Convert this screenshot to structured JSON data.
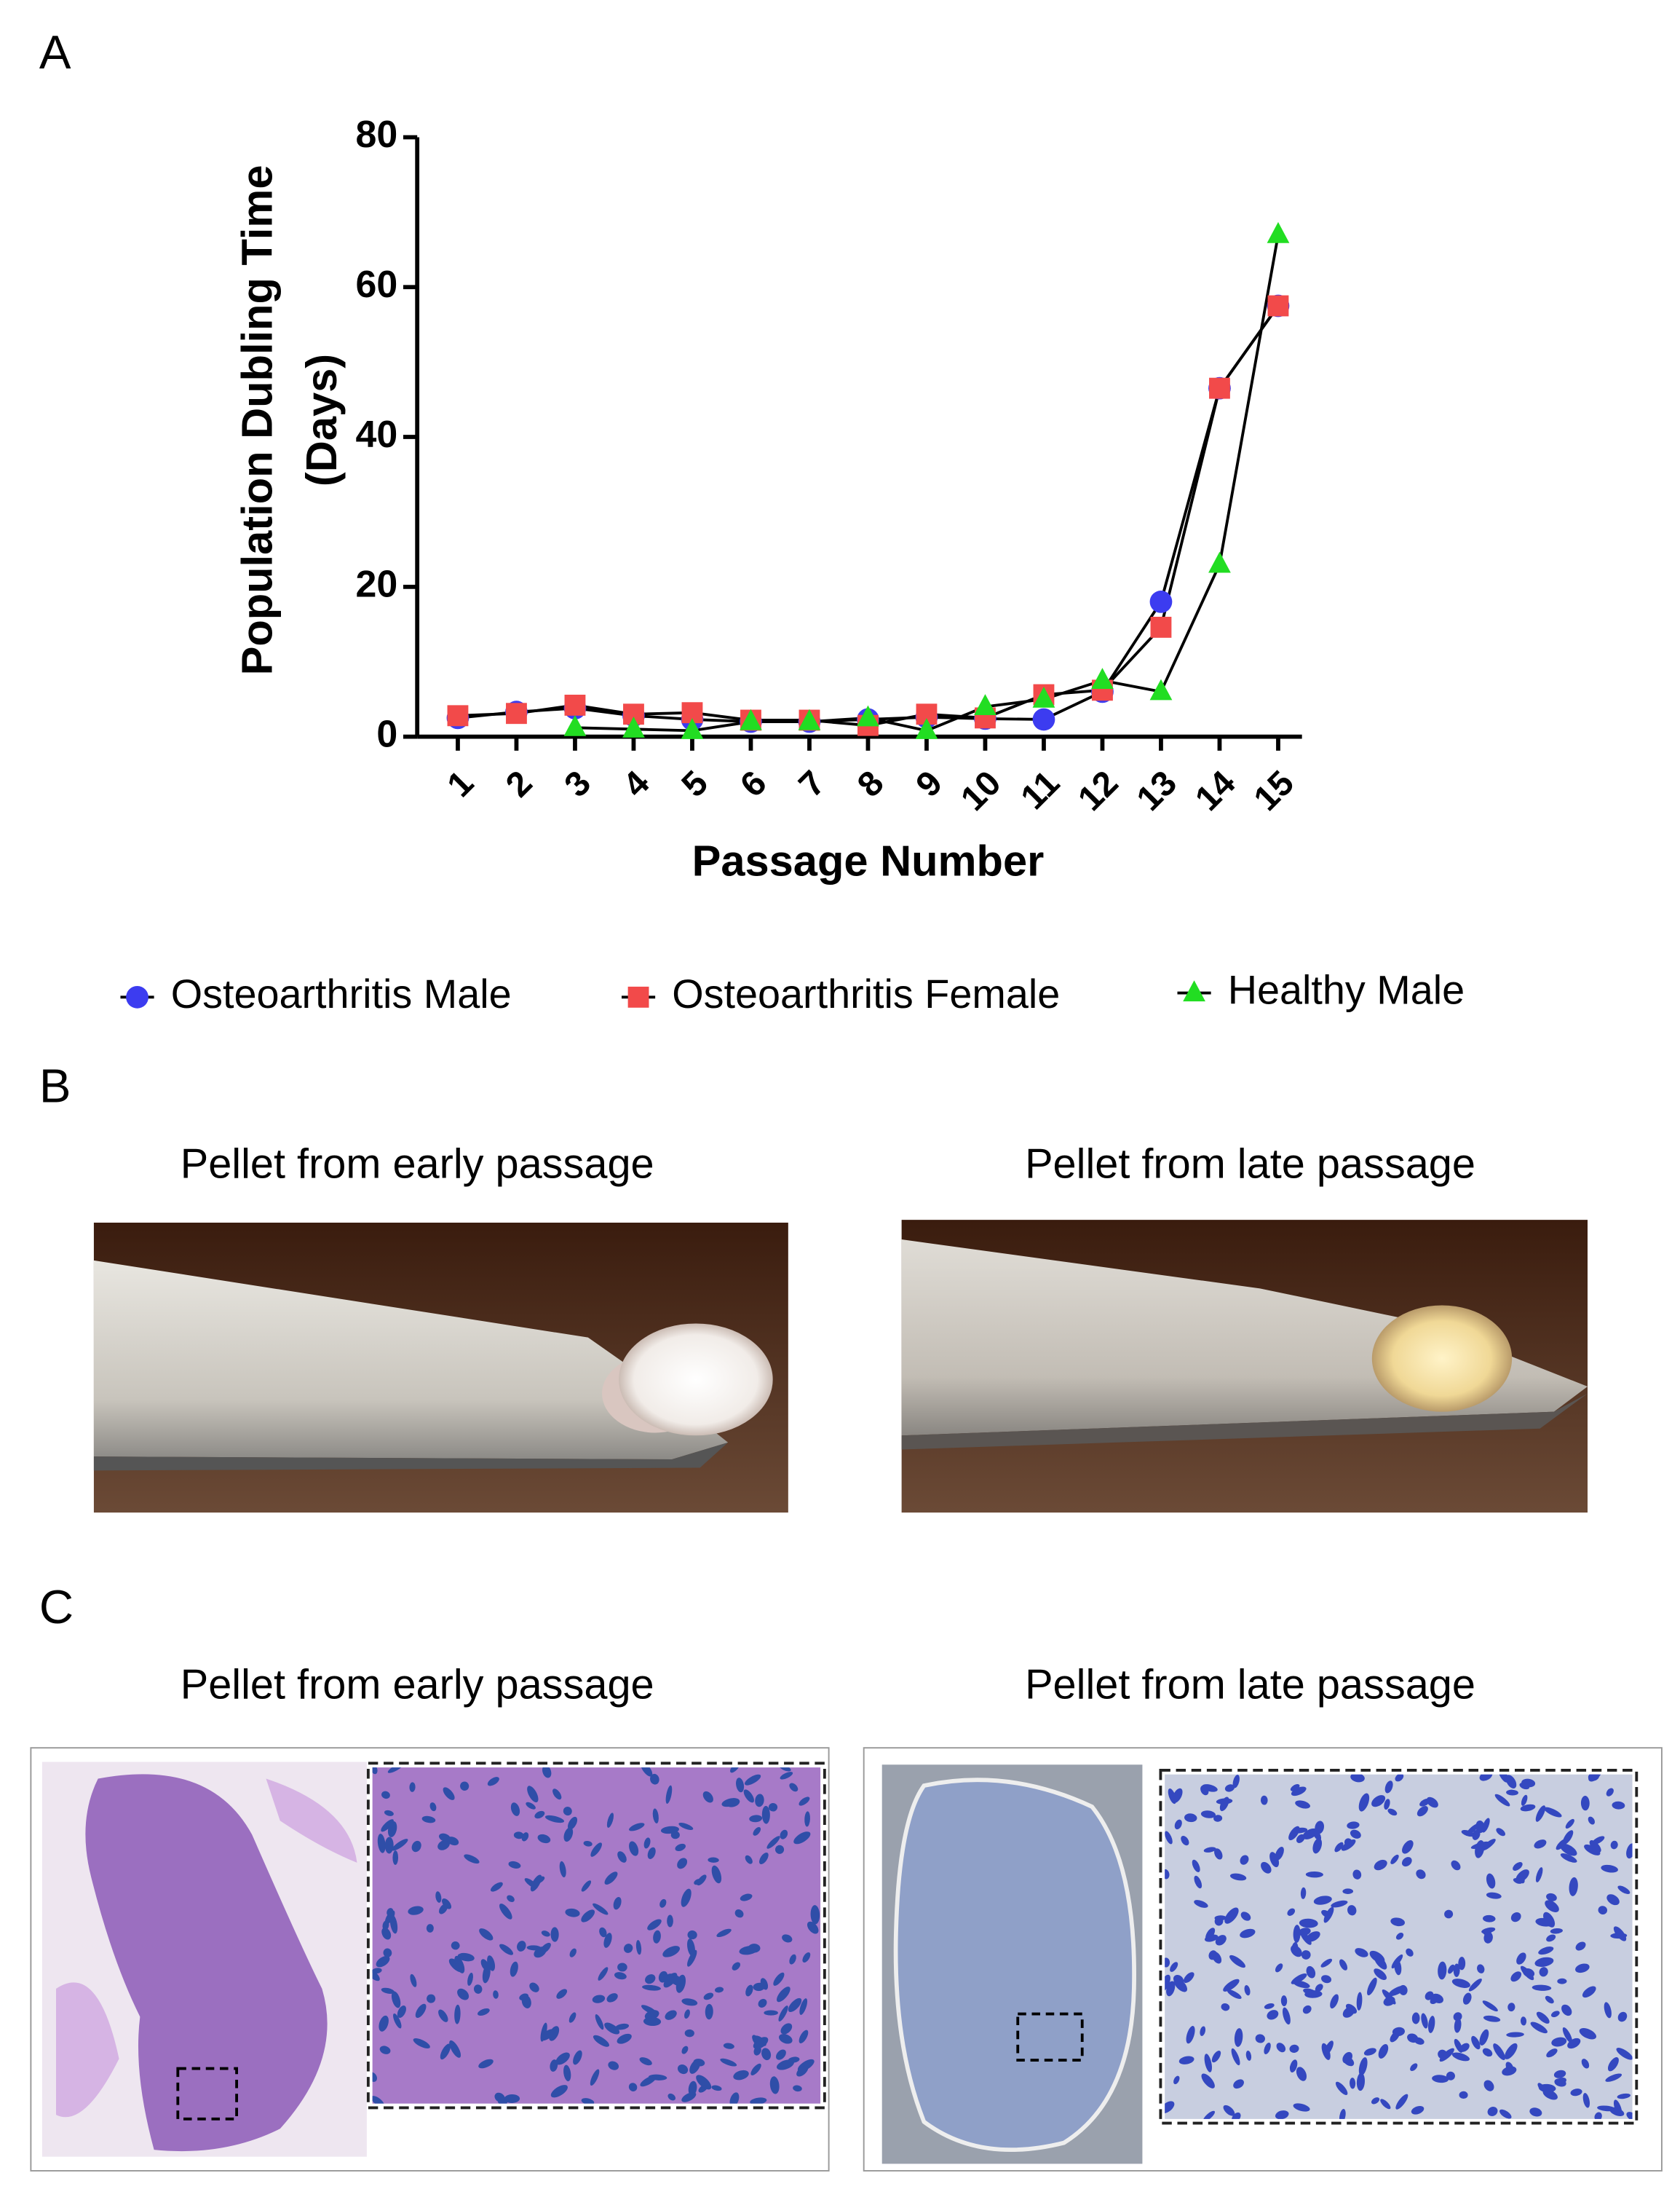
{
  "panel_a": {
    "label": "A"
  },
  "chart_data": {
    "type": "line",
    "ylabel": [
      "Population Dubling Time",
      "(Days)"
    ],
    "xlabel": "Passage Number",
    "categories": [
      "1",
      "2",
      "3",
      "4",
      "5",
      "6",
      "7",
      "8",
      "9",
      "10",
      "11",
      "12",
      "13",
      "14",
      "15"
    ],
    "series": [
      {
        "name": "Osteoarthritis Male",
        "color": "#3c3cf0",
        "marker": "circle",
        "values": [
          2.5,
          3.3,
          3.8,
          2.8,
          2.3,
          2,
          2,
          2.3,
          2.6,
          2.4,
          2.3,
          6,
          18,
          46.5,
          57.5
        ]
      },
      {
        "name": "Osteoarthritis Female",
        "color": "#f24a4a",
        "marker": "square",
        "values": [
          2.8,
          3.1,
          4.2,
          3,
          3.2,
          2.2,
          2.2,
          1.5,
          3,
          2.5,
          5.6,
          6.2,
          14.6,
          46.5,
          57.5
        ]
      },
      {
        "name": "Healthy Male",
        "color": "#22dd22",
        "marker": "triangle",
        "values": [
          null,
          null,
          1.2,
          1,
          0.8,
          2,
          2,
          2.5,
          0.8,
          4,
          5,
          7.5,
          6,
          23,
          67
        ]
      }
    ],
    "ylim": [
      0,
      80
    ],
    "yticks": [
      0,
      20,
      40,
      60,
      80
    ],
    "grid": false,
    "legend": "bottom"
  },
  "panel_b": {
    "label": "B",
    "captions": [
      "Pellet from early passage",
      "Pellet from late passage"
    ]
  },
  "panel_c": {
    "label": "C",
    "captions": [
      "Pellet from early passage",
      "Pellet from late passage"
    ]
  }
}
